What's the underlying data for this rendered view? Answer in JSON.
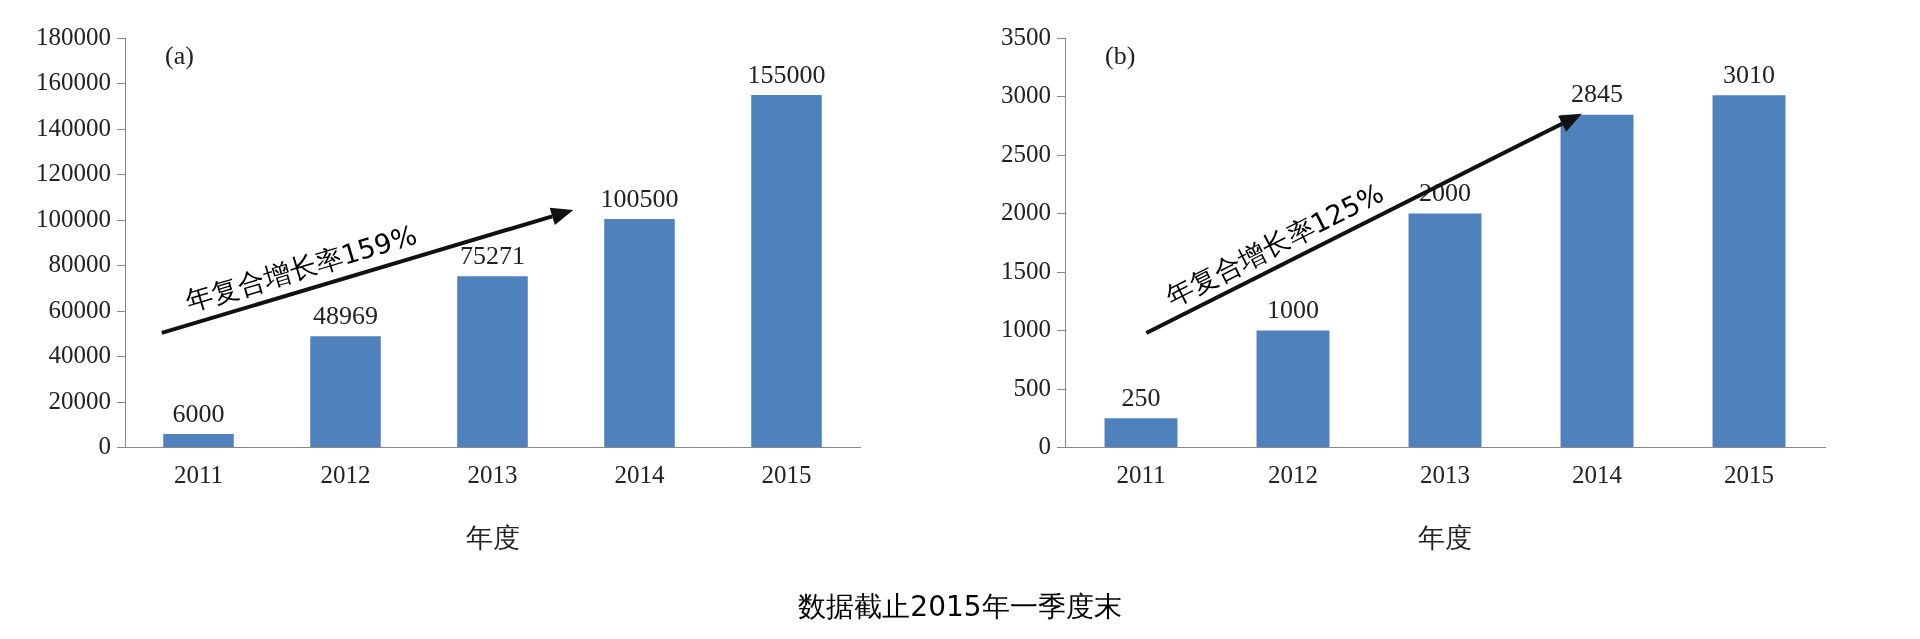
{
  "chart_data": [
    {
      "type": "bar",
      "title": "(a)",
      "xlabel": "年度",
      "categories": [
        "2011",
        "2012",
        "2013",
        "2014",
        "2015"
      ],
      "values": [
        6000,
        48969,
        75271,
        100500,
        155000
      ],
      "color": "#4f81bd",
      "ylim": [
        0,
        180000
      ],
      "yticks": [
        0,
        20000,
        40000,
        60000,
        80000,
        100000,
        120000,
        140000,
        160000,
        180000
      ],
      "grid": false,
      "legend": false,
      "data_labels": true,
      "annotations": [
        "年复合增长率159%"
      ]
    },
    {
      "type": "bar",
      "title": "(b)",
      "xlabel": "年度",
      "categories": [
        "2011",
        "2012",
        "2013",
        "2014",
        "2015"
      ],
      "values": [
        250,
        1000,
        2000,
        2845,
        3010
      ],
      "color": "#4f81bd",
      "ylim": [
        0,
        3500
      ],
      "yticks": [
        0,
        500,
        1000,
        1500,
        2000,
        2500,
        3000,
        3500
      ],
      "grid": false,
      "legend": false,
      "data_labels": true,
      "annotations": [
        "年复合增长率125%",
        "数据截止2015年一季度末"
      ]
    }
  ]
}
